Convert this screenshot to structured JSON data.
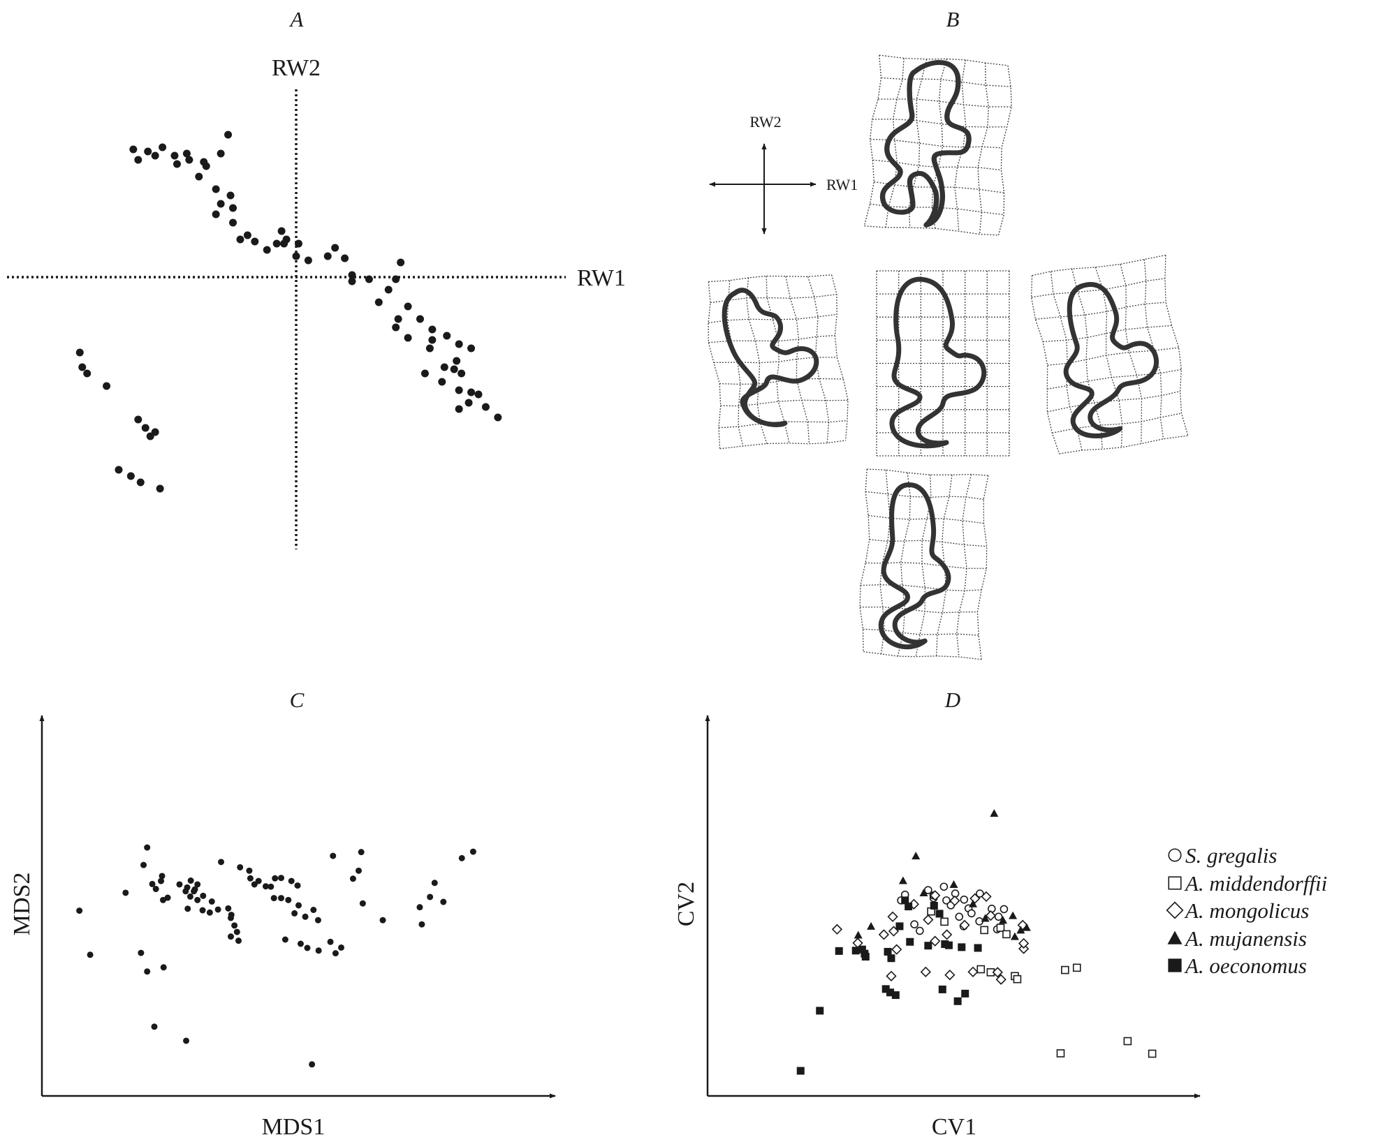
{
  "panels": {
    "A": {
      "letter": "A",
      "x_axis_label": "RW1",
      "y_axis_label": "RW2"
    },
    "B": {
      "letter": "B",
      "x_axis_label": "RW1",
      "y_axis_label": "RW2"
    },
    "C": {
      "letter": "C",
      "x_axis_label": "MDS1",
      "y_axis_label": "MDS2"
    },
    "D": {
      "letter": "D",
      "x_axis_label": "CV1",
      "y_axis_label": "CV2"
    }
  },
  "legend": [
    {
      "label": "S. gregalis",
      "marker": "open-circle"
    },
    {
      "label": "A. middendorffii",
      "marker": "open-square"
    },
    {
      "label": "A. mongolicus",
      "marker": "open-diamond"
    },
    {
      "label": "A. mujanensis",
      "marker": "filled-triangle"
    },
    {
      "label": "A. oeconomus",
      "marker": "filled-square"
    }
  ],
  "chart_data": [
    {
      "type": "scatter",
      "title": "A",
      "xlabel": "RW1",
      "ylabel": "RW2",
      "x_axis_style": "dotted, crossing at origin",
      "y_axis_style": "dotted, crossing at origin",
      "xlim": [
        -10,
        10
      ],
      "ylim": [
        -10,
        7
      ],
      "points": [
        [
          -6.7,
          6.1
        ],
        [
          -6.5,
          5.6
        ],
        [
          -6.1,
          6.0
        ],
        [
          -5.8,
          5.8
        ],
        [
          -5.5,
          6.2
        ],
        [
          -5.0,
          5.8
        ],
        [
          -4.5,
          5.9
        ],
        [
          -4.4,
          5.6
        ],
        [
          -4.9,
          5.4
        ],
        [
          -3.8,
          5.5
        ],
        [
          -4.0,
          4.8
        ],
        [
          -3.7,
          5.3
        ],
        [
          -2.8,
          6.8
        ],
        [
          -3.1,
          5.9
        ],
        [
          -3.3,
          4.2
        ],
        [
          -2.7,
          3.9
        ],
        [
          -3.1,
          3.5
        ],
        [
          -2.6,
          3.3
        ],
        [
          -3.3,
          3.0
        ],
        [
          -2.6,
          2.6
        ],
        [
          -2.0,
          2.0
        ],
        [
          -2.3,
          1.8
        ],
        [
          -1.7,
          1.7
        ],
        [
          -1.2,
          1.3
        ],
        [
          -0.6,
          2.2
        ],
        [
          -0.4,
          1.8
        ],
        [
          -0.8,
          1.6
        ],
        [
          -0.5,
          1.6
        ],
        [
          0.1,
          1.6
        ],
        [
          0.0,
          1.0
        ],
        [
          0.5,
          0.8
        ],
        [
          1.3,
          1.0
        ],
        [
          1.6,
          1.4
        ],
        [
          2.0,
          0.9
        ],
        [
          2.3,
          0.1
        ],
        [
          2.3,
          -0.2
        ],
        [
          3.0,
          -0.1
        ],
        [
          3.4,
          -1.2
        ],
        [
          3.8,
          -0.6
        ],
        [
          4.3,
          0.7
        ],
        [
          4.1,
          -0.1
        ],
        [
          4.6,
          -1.4
        ],
        [
          4.2,
          -2.0
        ],
        [
          4.1,
          -2.4
        ],
        [
          4.6,
          -2.9
        ],
        [
          5.1,
          -2.0
        ],
        [
          5.6,
          -2.5
        ],
        [
          5.6,
          -3.0
        ],
        [
          5.5,
          -3.4
        ],
        [
          6.2,
          -2.8
        ],
        [
          6.7,
          -3.2
        ],
        [
          7.2,
          -3.4
        ],
        [
          6.6,
          -4.0
        ],
        [
          6.1,
          -4.3
        ],
        [
          6.5,
          -4.4
        ],
        [
          5.3,
          -4.6
        ],
        [
          6.0,
          -5.0
        ],
        [
          6.8,
          -4.6
        ],
        [
          7.2,
          -5.5
        ],
        [
          6.7,
          -5.4
        ],
        [
          6.7,
          -6.3
        ],
        [
          7.1,
          -6.0
        ],
        [
          7.5,
          -5.6
        ],
        [
          7.8,
          -6.2
        ],
        [
          8.3,
          -6.7
        ],
        [
          -8.9,
          -3.6
        ],
        [
          -8.8,
          -4.3
        ],
        [
          -8.6,
          -4.6
        ],
        [
          -7.8,
          -5.2
        ],
        [
          -6.5,
          -6.8
        ],
        [
          -6.2,
          -7.2
        ],
        [
          -6.0,
          -7.6
        ],
        [
          -5.8,
          -7.4
        ],
        [
          -7.3,
          -9.2
        ],
        [
          -6.8,
          -9.5
        ],
        [
          -6.4,
          -9.8
        ],
        [
          -5.6,
          -10.1
        ]
      ]
    },
    {
      "type": "scatter",
      "title": "C",
      "xlabel": "MDS1",
      "ylabel": "MDS2",
      "xlim": [
        0,
        100
      ],
      "ylim": [
        0,
        100
      ],
      "points": [
        [
          7.3,
          48.7
        ],
        [
          16.3,
          53.4
        ],
        [
          24.5,
          52.1
        ],
        [
          19.3,
          37.6
        ],
        [
          23.7,
          33.8
        ],
        [
          20.5,
          65.3
        ],
        [
          21.5,
          55.7
        ],
        [
          23.2,
          56.5
        ],
        [
          22.2,
          54.4
        ],
        [
          19.8,
          60.7
        ],
        [
          23.4,
          57.8
        ],
        [
          23.6,
          51.5
        ],
        [
          26.8,
          55.6
        ],
        [
          28.3,
          54.8
        ],
        [
          29.0,
          56.6
        ],
        [
          30.3,
          55.6
        ],
        [
          29.8,
          54.3
        ],
        [
          30.3,
          51.5
        ],
        [
          28.4,
          49.2
        ],
        [
          28.0,
          53.8
        ],
        [
          28.9,
          52.4
        ],
        [
          29.6,
          53.8
        ],
        [
          31.4,
          52.6
        ],
        [
          33.1,
          51.1
        ],
        [
          31.3,
          48.8
        ],
        [
          32.7,
          48.2
        ],
        [
          34.3,
          49.0
        ],
        [
          36.3,
          49.3
        ],
        [
          36.9,
          47.6
        ],
        [
          36.8,
          46.8
        ],
        [
          37.5,
          44.8
        ],
        [
          36.8,
          41.9
        ],
        [
          38.3,
          40.8
        ],
        [
          34.9,
          61.5
        ],
        [
          38.6,
          60.1
        ],
        [
          40.4,
          59.2
        ],
        [
          40.6,
          57.2
        ],
        [
          41.4,
          55.6
        ],
        [
          42.2,
          56.5
        ],
        [
          43.6,
          55.1
        ],
        [
          44.6,
          55.0
        ],
        [
          45.4,
          57.2
        ],
        [
          46.6,
          57.3
        ],
        [
          48.6,
          56.5
        ],
        [
          49.8,
          55.3
        ],
        [
          45.2,
          52.0
        ],
        [
          46.6,
          52.0
        ],
        [
          48.0,
          51.5
        ],
        [
          50.0,
          50.1
        ],
        [
          49.2,
          48.0
        ],
        [
          51.3,
          47.1
        ],
        [
          52.9,
          48.9
        ],
        [
          53.8,
          46.2
        ],
        [
          47.4,
          41.1
        ],
        [
          50.4,
          40.0
        ],
        [
          51.7,
          38.9
        ],
        [
          53.9,
          38.2
        ],
        [
          56.2,
          40.5
        ],
        [
          57.2,
          37.5
        ],
        [
          58.3,
          39.0
        ],
        [
          56.7,
          63.1
        ],
        [
          62.2,
          64.1
        ],
        [
          61.7,
          59.2
        ],
        [
          60.6,
          57.1
        ],
        [
          62.5,
          50.6
        ],
        [
          66.4,
          46.2
        ],
        [
          73.6,
          49.6
        ],
        [
          74.0,
          45.1
        ],
        [
          76.5,
          56.0
        ],
        [
          75.6,
          52.3
        ],
        [
          78.2,
          51.0
        ],
        [
          81.8,
          62.5
        ],
        [
          84.0,
          64.2
        ],
        [
          52.6,
          8.3
        ],
        [
          21.9,
          18.2
        ],
        [
          28.1,
          14.5
        ],
        [
          9.4,
          37.1
        ],
        [
          20.5,
          32.7
        ],
        [
          38.0,
          43.1
        ]
      ]
    },
    {
      "type": "scatter",
      "title": "D",
      "xlabel": "CV1",
      "ylabel": "CV2",
      "xlim": [
        0,
        100
      ],
      "ylim": [
        0,
        100
      ],
      "series": [
        {
          "name": "S. gregalis",
          "marker": "open-circle",
          "points": [
            [
              40.1,
              52.9
            ],
            [
              39.3,
              51.4
            ],
            [
              44.8,
              54.1
            ],
            [
              45.9,
              52.0
            ],
            [
              45.9,
              52.7
            ],
            [
              50.3,
              53.2
            ],
            [
              48.5,
              51.4
            ],
            [
              52.1,
              51.6
            ],
            [
              51.1,
              47.1
            ],
            [
              49.4,
              50.1
            ],
            [
              53.0,
              49.3
            ],
            [
              53.6,
              48.0
            ],
            [
              57.7,
              49.2
            ],
            [
              59.1,
              47.1
            ],
            [
              42.0,
              45.1
            ],
            [
              43.1,
              43.4
            ],
            [
              52.0,
              44.6
            ],
            [
              60.2,
              49.1
            ],
            [
              55.3,
              53.2
            ],
            [
              48.0,
              55.0
            ],
            [
              58.8,
              43.8
            ],
            [
              55.2,
              45.9
            ]
          ]
        },
        {
          "name": "A. middendorffii",
          "marker": "open-square",
          "points": [
            [
              45.4,
              48.5
            ],
            [
              48.1,
              45.8
            ],
            [
              56.2,
              43.6
            ],
            [
              59.5,
              44.2
            ],
            [
              60.7,
              42.5
            ],
            [
              55.5,
              33.3
            ],
            [
              57.5,
              32.5
            ],
            [
              62.4,
              31.5
            ],
            [
              72.6,
              33.1
            ],
            [
              75.0,
              33.7
            ],
            [
              85.3,
              14.4
            ],
            [
              90.3,
              11.1
            ],
            [
              71.7,
              11.2
            ],
            [
              62.9,
              30.7
            ]
          ]
        },
        {
          "name": "A. mongolicus",
          "marker": "open-diamond",
          "points": [
            [
              26.3,
              43.8
            ],
            [
              37.6,
              47.1
            ],
            [
              41.9,
              50.4
            ],
            [
              46.2,
              52.7
            ],
            [
              50.2,
              51.3
            ],
            [
              54.3,
              51.9
            ],
            [
              56.6,
              52.4
            ],
            [
              57.5,
              47.4
            ],
            [
              52.2,
              44.9
            ],
            [
              44.8,
              46.3
            ],
            [
              30.5,
              40.2
            ],
            [
              38.4,
              38.5
            ],
            [
              37.3,
              31.5
            ],
            [
              44.3,
              32.6
            ],
            [
              49.2,
              31.8
            ],
            [
              53.9,
              32.6
            ],
            [
              58.9,
              32.5
            ],
            [
              59.6,
              30.6
            ],
            [
              64.2,
              38.7
            ],
            [
              64.2,
              40.1
            ],
            [
              64.0,
              44.9
            ],
            [
              35.8,
              42.4
            ],
            [
              37.8,
              43.3
            ],
            [
              48.6,
              42.4
            ],
            [
              46.2,
              40.7
            ]
          ]
        },
        {
          "name": "A. mujanensis",
          "marker": "filled-triangle",
          "points": [
            [
              58.2,
              74.3
            ],
            [
              42.3,
              63.1
            ],
            [
              39.7,
              56.6
            ],
            [
              43.9,
              53.4
            ],
            [
              50.0,
              55.6
            ],
            [
              53.9,
              50.5
            ],
            [
              56.4,
              46.7
            ],
            [
              60.0,
              46.2
            ],
            [
              62.4,
              41.9
            ],
            [
              63.6,
              43.6
            ],
            [
              64.8,
              44.3
            ],
            [
              62.0,
              47.4
            ],
            [
              33.2,
              44.6
            ],
            [
              30.6,
              42.3
            ]
          ]
        },
        {
          "name": "A. oeconomus",
          "marker": "filled-square",
          "points": [
            [
              40.1,
              51.4
            ],
            [
              40.8,
              49.8
            ],
            [
              46.0,
              50.0
            ],
            [
              47.1,
              47.9
            ],
            [
              39.0,
              44.6
            ],
            [
              41.1,
              40.5
            ],
            [
              44.8,
              39.5
            ],
            [
              48.2,
              39.9
            ],
            [
              49.0,
              39.6
            ],
            [
              51.6,
              39.1
            ],
            [
              54.9,
              38.9
            ],
            [
              30.1,
              38.2
            ],
            [
              31.4,
              38.5
            ],
            [
              31.9,
              37.4
            ],
            [
              32.1,
              36.6
            ],
            [
              26.7,
              38.1
            ],
            [
              36.6,
              37.9
            ],
            [
              37.3,
              36.2
            ],
            [
              36.2,
              28.1
            ],
            [
              37.1,
              27.2
            ],
            [
              38.2,
              26.5
            ],
            [
              47.7,
              28.0
            ],
            [
              50.8,
              24.9
            ],
            [
              52.3,
              26.9
            ],
            [
              22.8,
              22.4
            ],
            [
              18.9,
              6.6
            ]
          ]
        }
      ]
    }
  ]
}
